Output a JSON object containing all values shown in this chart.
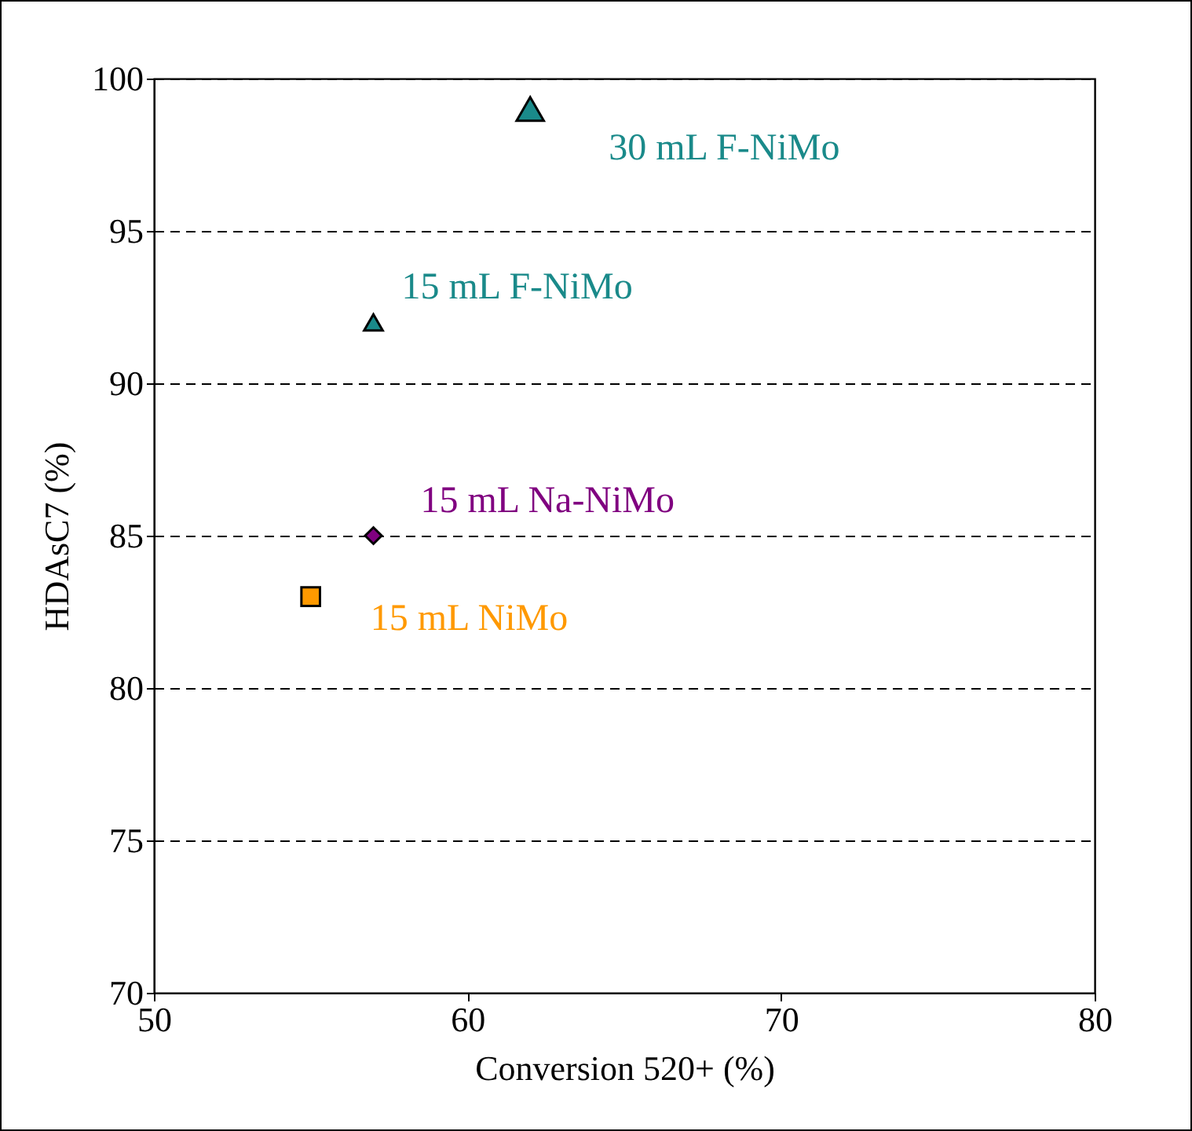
{
  "chart_data": {
    "type": "scatter",
    "xlabel": "Conversion 520+ (%)",
    "ylabel": "HDAsC7 (%)",
    "xlim": [
      50,
      80
    ],
    "xticks": [
      50,
      60,
      70,
      80
    ],
    "ylim": [
      70,
      100
    ],
    "yticks": [
      70,
      75,
      80,
      85,
      90,
      95,
      100
    ],
    "grid": "y",
    "line_style": "dashed",
    "series": [
      {
        "name": "30 mL F-NiMo",
        "color": "#1a8a8a",
        "marker": "triangle",
        "x": [
          62
        ],
        "values": [
          99
        ]
      },
      {
        "name": "15 mL F-NiMo",
        "color": "#1a8a8a",
        "marker": "triangle",
        "x": [
          57
        ],
        "values": [
          92
        ]
      },
      {
        "name": "15 mL Na-NiMo",
        "color": "#800080",
        "marker": "diamond",
        "x": [
          57
        ],
        "values": [
          85
        ]
      },
      {
        "name": "15 mL NiMo",
        "color": "#ff9900",
        "marker": "square",
        "x": [
          55
        ],
        "values": [
          83
        ]
      }
    ]
  }
}
